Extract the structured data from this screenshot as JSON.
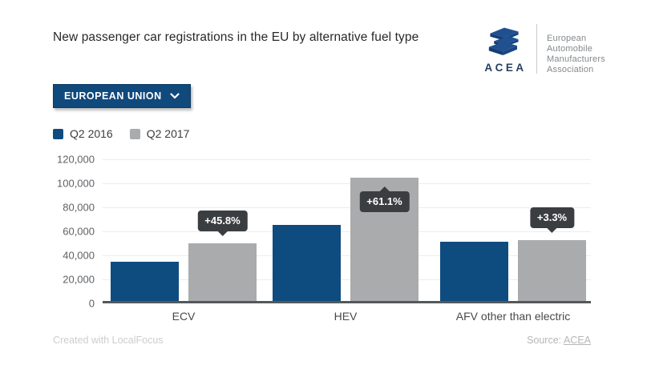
{
  "header": {
    "title": "New passenger car registrations in the EU by alternative fuel type",
    "logo": {
      "icon": "acea-stacked-cube-icon",
      "acronym": "ACEA",
      "org_lines": [
        "European",
        "Automobile",
        "Manufacturers",
        "Association"
      ],
      "brand_color": "#1f4e8e"
    }
  },
  "controls": {
    "region_dropdown": {
      "label": "EUROPEAN UNION",
      "icon": "chevron-down-icon",
      "bg_color": "#10497c"
    }
  },
  "chart_data": {
    "type": "bar",
    "title": "New passenger car registrations in the EU by alternative fuel type",
    "categories": [
      "ECV",
      "HEV",
      "AFV other than electric"
    ],
    "series": [
      {
        "name": "Q2 2016",
        "color": "#0e4c80",
        "values": [
          33600,
          64000,
          50000
        ]
      },
      {
        "name": "Q2 2017",
        "color": "#a9abad",
        "values": [
          49000,
          103100,
          51650
        ]
      }
    ],
    "annotations": [
      {
        "category": "ECV",
        "series": 1,
        "label": "+45.8%",
        "placement": "above"
      },
      {
        "category": "HEV",
        "series": 1,
        "label": "+61.1%",
        "placement": "inside"
      },
      {
        "category": "AFV other than electric",
        "series": 1,
        "label": "+3.3%",
        "placement": "above"
      }
    ],
    "ylim": [
      0,
      120000
    ],
    "yticks": [
      {
        "value": 0,
        "label": "0"
      },
      {
        "value": 20000,
        "label": "20,000"
      },
      {
        "value": 40000,
        "label": "40,000"
      },
      {
        "value": 60000,
        "label": "60,000"
      },
      {
        "value": 80000,
        "label": "80,000"
      },
      {
        "value": 100000,
        "label": "100,000"
      },
      {
        "value": 120000,
        "label": "120,000"
      }
    ],
    "grid": true,
    "legend_position": "top-left"
  },
  "footer": {
    "created": "Created with LocalFocus",
    "source_label": "Source:",
    "source_link": "ACEA"
  }
}
